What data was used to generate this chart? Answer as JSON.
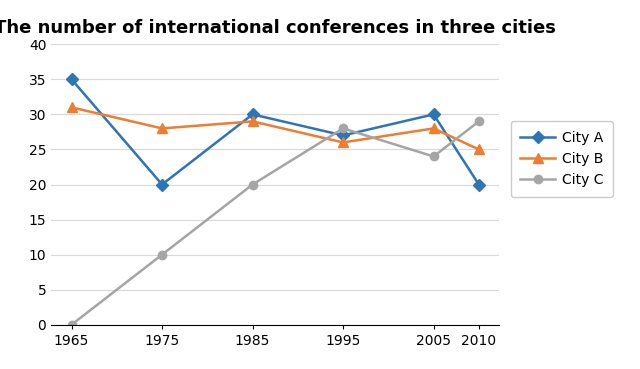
{
  "title": "The number of international conferences in three cities",
  "x": [
    1965,
    1975,
    1985,
    1995,
    2005,
    2010
  ],
  "city_a": [
    35,
    20,
    30,
    27,
    30,
    20
  ],
  "city_b": [
    31,
    28,
    29,
    26,
    28,
    25
  ],
  "city_c": [
    0,
    10,
    20,
    28,
    24,
    29
  ],
  "city_a_color": "#2e75b6",
  "city_b_color": "#ed7d31",
  "city_c_color": "#a5a5a5",
  "ylim": [
    0,
    40
  ],
  "yticks": [
    0,
    5,
    10,
    15,
    20,
    25,
    30,
    35,
    40
  ],
  "legend_labels": [
    "City A",
    "City B",
    "City C"
  ],
  "marker_a": "D",
  "marker_b": "^",
  "marker_c": "o",
  "linewidth": 1.8,
  "markersize_a": 6,
  "markersize_b": 7,
  "markersize_c": 6,
  "title_fontsize": 13,
  "tick_fontsize": 10,
  "legend_fontsize": 10,
  "background_color": "#ffffff",
  "grid_color": "#d9d9d9"
}
